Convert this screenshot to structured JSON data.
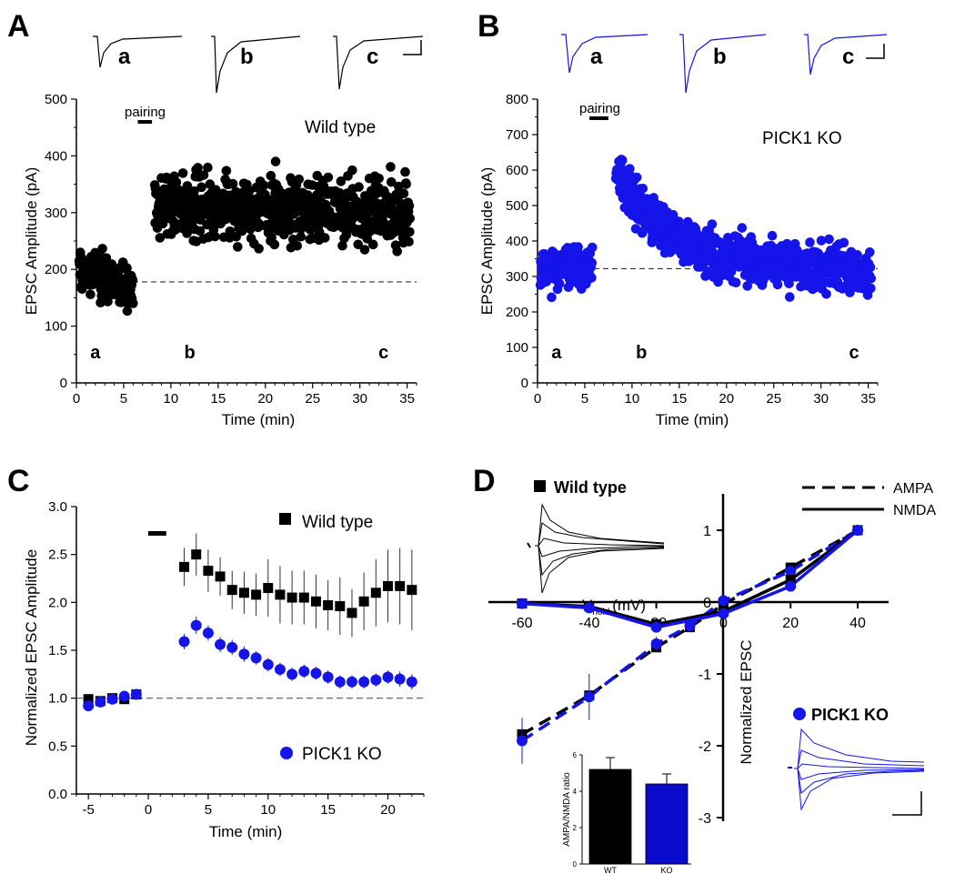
{
  "colors": {
    "wild_type": "#000000",
    "pick1_ko": "#1515ea",
    "ko_bar": "#0a0acc"
  },
  "panels": {
    "A": {
      "label": "A",
      "trace_labels": [
        "a",
        "b",
        "c"
      ],
      "pairing": "pairing",
      "condition": "Wild type"
    },
    "B": {
      "label": "B",
      "trace_labels": [
        "a",
        "b",
        "c"
      ],
      "pairing": "pairing",
      "condition": "PICK1 KO"
    },
    "C": {
      "label": "C",
      "legend_wt": "Wild type",
      "legend_ko": "PICK1 KO"
    },
    "D": {
      "label": "D",
      "legend_wt": "Wild type",
      "legend_ko": "PICK1 KO",
      "legend_ampa": "AMPA",
      "legend_nmda": "NMDA",
      "vhold_main": "V",
      "vhold_sub": "hold",
      "vhold_unit": "(mV)"
    }
  },
  "chart_data": [
    {
      "id": "A",
      "type": "scatter",
      "title": "Wild type",
      "xlabel": "Time (min)",
      "ylabel": "EPSC Amplitude (pA)",
      "xlim": [
        0,
        36
      ],
      "ylim": [
        0,
        500
      ],
      "xticks": [
        0,
        5,
        10,
        15,
        20,
        25,
        30,
        35
      ],
      "yticks": [
        0,
        100,
        200,
        300,
        400,
        500
      ],
      "baseline": 178,
      "pairing_window": [
        6.5,
        8
      ],
      "segments": [
        {
          "x_range": [
            0.3,
            6.0
          ],
          "n": 150,
          "start": 200,
          "end": 170,
          "noise": 28,
          "seed": 3
        },
        {
          "x_range": [
            8.3,
            35.3
          ],
          "n": 700,
          "start": 315,
          "end": 300,
          "noise": 40,
          "seed": 7
        }
      ],
      "point_labels": [
        {
          "text": "a",
          "x": 2
        },
        {
          "text": "b",
          "x": 12
        },
        {
          "text": "c",
          "x": 32.5
        }
      ]
    },
    {
      "id": "B",
      "type": "scatter",
      "title": "PICK1 KO",
      "xlabel": "Time (min)",
      "ylabel": "EPSC Amplitude (pA)",
      "xlim": [
        0,
        36
      ],
      "ylim": [
        0,
        800
      ],
      "xticks": [
        0,
        5,
        10,
        15,
        20,
        25,
        30,
        35
      ],
      "yticks": [
        0,
        100,
        200,
        300,
        400,
        500,
        600,
        700,
        800
      ],
      "baseline": 322,
      "pairing_window": [
        5.5,
        7.5
      ],
      "segments": [
        {
          "x_range": [
            0.3,
            5.8
          ],
          "n": 140,
          "start": 325,
          "end": 320,
          "noise": 38,
          "seed": 11
        },
        {
          "x_range": [
            8.3,
            35.3
          ],
          "n": 760,
          "start": 600,
          "end": 320,
          "noise": 45,
          "seed": 13,
          "decay": 0.18
        }
      ],
      "point_labels": [
        {
          "text": "a",
          "x": 2
        },
        {
          "text": "b",
          "x": 11
        },
        {
          "text": "c",
          "x": 33.5
        }
      ]
    },
    {
      "id": "C",
      "type": "scatter",
      "xlabel": "Time (min)",
      "ylabel": "Normalized EPSC Amplitude",
      "xlim": [
        -6,
        23
      ],
      "ylim": [
        0,
        3
      ],
      "xticks": [
        -5,
        0,
        5,
        10,
        15,
        20
      ],
      "yticks": [
        0,
        0.5,
        1.0,
        1.5,
        2.0,
        2.5,
        3.0
      ],
      "ytick_labels": [
        "0.0",
        "0.5",
        "1.0",
        "1.5",
        "2.0",
        "2.5",
        "3.0"
      ],
      "baseline": 1.0,
      "pairing_window": [
        0,
        1.5
      ],
      "pairing_y": 2.72,
      "series": [
        {
          "name": "Wild type",
          "marker": "square",
          "x": [
            -5,
            -4,
            -3,
            -2,
            -1,
            3,
            4,
            5,
            6,
            7,
            8,
            9,
            10,
            11,
            12,
            13,
            14,
            15,
            16,
            17,
            18,
            19,
            20,
            21,
            22
          ],
          "y": [
            0.99,
            0.97,
            1.0,
            0.99,
            1.04,
            2.37,
            2.5,
            2.33,
            2.27,
            2.13,
            2.1,
            2.08,
            2.15,
            2.08,
            2.05,
            2.05,
            2.01,
            1.97,
            1.96,
            1.89,
            2.01,
            2.1,
            2.17,
            2.17,
            2.13
          ],
          "err": [
            0.05,
            0.04,
            0.04,
            0.04,
            0.03,
            0.2,
            0.22,
            0.22,
            0.2,
            0.2,
            0.22,
            0.22,
            0.3,
            0.3,
            0.28,
            0.28,
            0.28,
            0.26,
            0.3,
            0.25,
            0.3,
            0.35,
            0.38,
            0.4,
            0.42
          ]
        },
        {
          "name": "PICK1 KO",
          "marker": "circle",
          "x": [
            -5,
            -4,
            -3,
            -2,
            -1,
            3,
            4,
            5,
            6,
            7,
            8,
            9,
            10,
            11,
            12,
            13,
            14,
            15,
            16,
            17,
            18,
            19,
            20,
            21,
            22
          ],
          "y": [
            0.92,
            0.96,
            0.99,
            1.02,
            1.04,
            1.59,
            1.76,
            1.68,
            1.56,
            1.53,
            1.46,
            1.42,
            1.35,
            1.3,
            1.25,
            1.28,
            1.26,
            1.22,
            1.17,
            1.17,
            1.17,
            1.19,
            1.22,
            1.2,
            1.17
          ],
          "err": [
            0.04,
            0.04,
            0.03,
            0.03,
            0.03,
            0.08,
            0.09,
            0.08,
            0.08,
            0.08,
            0.08,
            0.07,
            0.07,
            0.07,
            0.07,
            0.07,
            0.07,
            0.07,
            0.07,
            0.07,
            0.07,
            0.07,
            0.07,
            0.08,
            0.08
          ]
        }
      ]
    },
    {
      "id": "D",
      "type": "line",
      "xlabel": "Vhold (mV)",
      "ylabel": "Normalized EPSC",
      "xlim": [
        -70,
        50
      ],
      "ylim": [
        -3,
        1.3
      ],
      "xticks": [
        -60,
        -40,
        -20,
        0,
        20,
        40
      ],
      "yticks": [
        -3,
        -2,
        -1,
        0,
        1
      ],
      "series": [
        {
          "name": "Wild type AMPA",
          "dash": true,
          "color": "#000000",
          "marker": "square",
          "x": [
            -60,
            -40,
            -20,
            -10,
            0,
            20,
            40
          ],
          "y": [
            -1.84,
            -1.3,
            -0.63,
            -0.35,
            -0.03,
            0.48,
            1.0
          ],
          "err": [
            0.0,
            0.0,
            0.05,
            0.0,
            0.0,
            0.03,
            0.02
          ]
        },
        {
          "name": "PICK1 KO AMPA",
          "dash": true,
          "color": "#1515ea",
          "marker": "circle",
          "x": [
            -60,
            -40,
            -20,
            -10,
            0,
            20,
            40
          ],
          "y": [
            -1.93,
            -1.32,
            -0.58,
            -0.33,
            0.02,
            0.43,
            1.0
          ],
          "err": [
            0.32,
            0.32,
            0.1,
            0.0,
            0.0,
            0.04,
            0.02
          ]
        },
        {
          "name": "Wild type NMDA",
          "dash": false,
          "color": "#000000",
          "marker": "square",
          "x": [
            -60,
            -40,
            -20,
            0,
            20,
            40
          ],
          "y": [
            -0.02,
            -0.06,
            -0.31,
            -0.13,
            0.31,
            1.0
          ],
          "err": [
            0.02,
            0.02,
            0.04,
            0.03,
            0.03,
            0.02
          ]
        },
        {
          "name": "PICK1 KO NMDA",
          "dash": false,
          "color": "#1515ea",
          "marker": "circle",
          "x": [
            -60,
            -40,
            -20,
            0,
            20,
            40
          ],
          "y": [
            -0.02,
            -0.08,
            -0.35,
            -0.16,
            0.22,
            1.0
          ],
          "err": [
            0.02,
            0.02,
            0.04,
            0.03,
            0.03,
            0.02
          ]
        }
      ]
    },
    {
      "id": "D-inset",
      "type": "bar",
      "ylabel": "AMPA/NMDA ratio",
      "categories": [
        "WT",
        "KO"
      ],
      "values": [
        5.2,
        4.4
      ],
      "err": [
        0.65,
        0.55
      ],
      "ylim": [
        0,
        6
      ],
      "yticks": [
        0,
        2,
        4,
        6
      ]
    }
  ]
}
